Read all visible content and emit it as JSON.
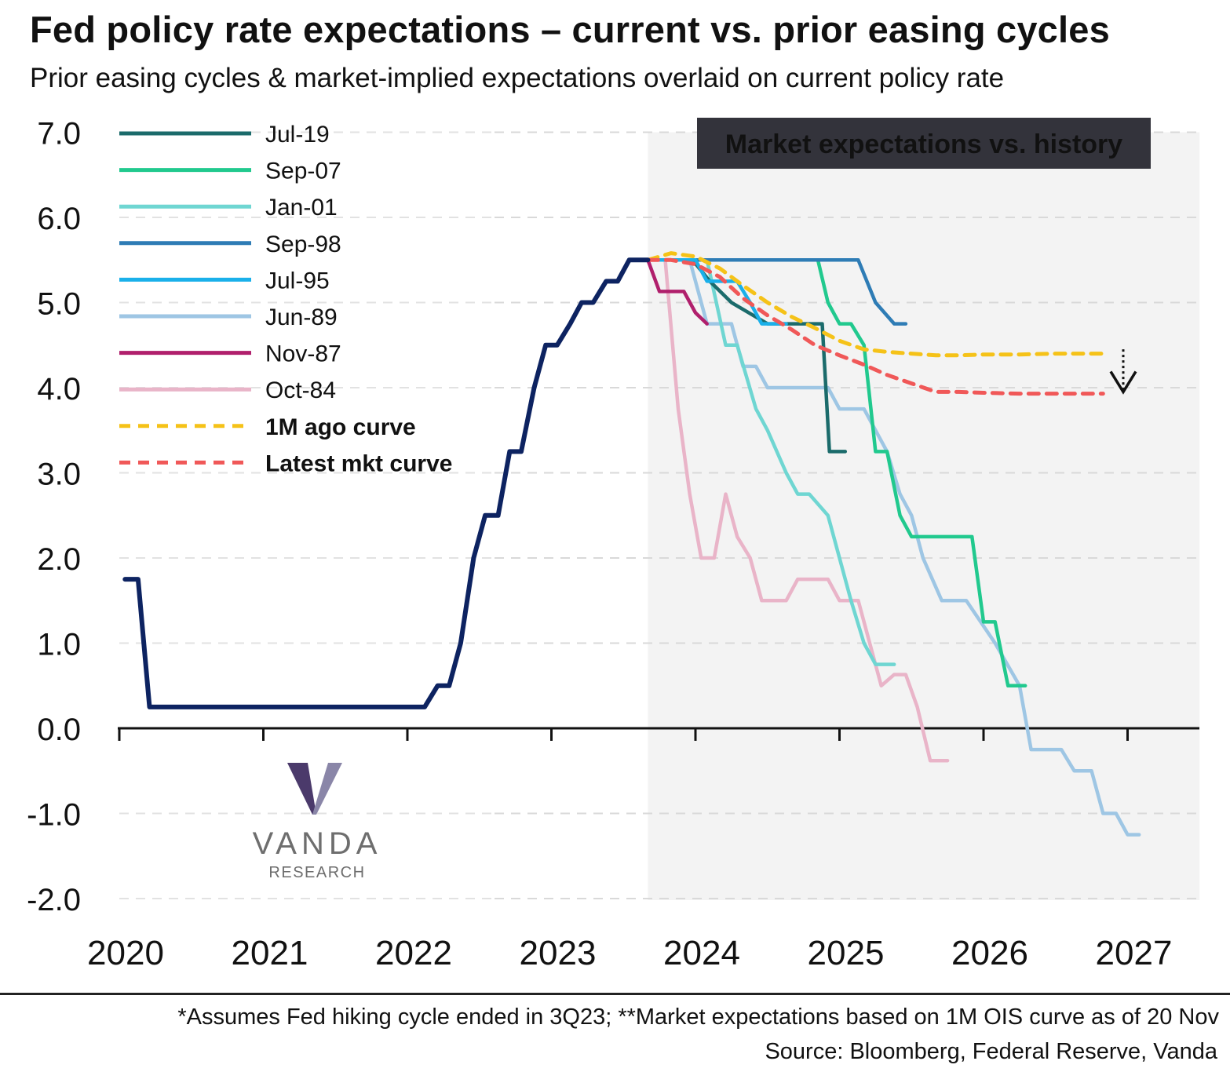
{
  "title": "Fed policy rate expectations – current vs. prior easing cycles",
  "subtitle": "Prior easing cycles & market-implied expectations overlaid on current policy rate",
  "footnote": "*Assumes Fed hiking cycle ended in 3Q23; **Market expectations based on 1M OIS curve as of 20 Nov",
  "source": "Source: Bloomberg, Federal Reserve, Vanda",
  "logo": {
    "name": "VANDA",
    "sub": "RESEARCH"
  },
  "chart_data": {
    "type": "line",
    "xlim": [
      2020.0,
      2027.5
    ],
    "ylim": [
      -2.0,
      7.0
    ],
    "xticks": [
      2020,
      2021,
      2022,
      2023,
      2024,
      2025,
      2026,
      2027
    ],
    "xtick_labels": [
      "2020",
      "2021",
      "2022",
      "2023",
      "2024",
      "2025",
      "2026",
      "2027"
    ],
    "yticks": [
      -2,
      -1,
      0,
      1,
      2,
      3,
      4,
      5,
      6,
      7
    ],
    "ytick_labels": [
      "-2.0",
      "-1.0",
      "0.0",
      "1.0",
      "2.0",
      "3.0",
      "4.0",
      "5.0",
      "6.0",
      "7.0"
    ],
    "grid": "horizontal dashed",
    "legend_position": "top-left",
    "shaded_region": {
      "x": [
        2023.67,
        2027.5
      ],
      "color": "#f3f3f3"
    },
    "annotation_box": {
      "text": "Market expectations vs. history",
      "bg": "#33333b",
      "color": "#ffffff"
    },
    "arrow_hint": {
      "x": 2026.97,
      "y_from": 4.45,
      "y_to": 3.95
    },
    "current_rate": {
      "color": "#0d2361",
      "points": [
        [
          2020.04,
          1.75
        ],
        [
          2020.13,
          1.75
        ],
        [
          2020.21,
          0.25
        ],
        [
          2022.12,
          0.25
        ],
        [
          2022.21,
          0.5
        ],
        [
          2022.29,
          0.5
        ],
        [
          2022.37,
          1.0
        ],
        [
          2022.46,
          2.0
        ],
        [
          2022.54,
          2.5
        ],
        [
          2022.63,
          2.5
        ],
        [
          2022.71,
          3.25
        ],
        [
          2022.79,
          3.25
        ],
        [
          2022.88,
          4.0
        ],
        [
          2022.96,
          4.5
        ],
        [
          2023.04,
          4.5
        ],
        [
          2023.13,
          4.75
        ],
        [
          2023.21,
          5.0
        ],
        [
          2023.29,
          5.0
        ],
        [
          2023.38,
          5.25
        ],
        [
          2023.46,
          5.25
        ],
        [
          2023.54,
          5.5
        ],
        [
          2023.67,
          5.5
        ]
      ]
    },
    "series": [
      {
        "name": "Jul-19",
        "color": "#1b6b6b",
        "dash": false,
        "bold": false,
        "points": [
          [
            2023.67,
            5.5
          ],
          [
            2023.98,
            5.5
          ],
          [
            2024.1,
            5.25
          ],
          [
            2024.25,
            5.0
          ],
          [
            2024.5,
            4.75
          ],
          [
            2024.88,
            4.75
          ],
          [
            2024.93,
            3.25
          ],
          [
            2025.04,
            3.25
          ]
        ]
      },
      {
        "name": "Sep-07",
        "color": "#21c98e",
        "dash": false,
        "bold": false,
        "points": [
          [
            2023.67,
            5.5
          ],
          [
            2024.85,
            5.5
          ],
          [
            2024.92,
            5.0
          ],
          [
            2025.0,
            4.75
          ],
          [
            2025.08,
            4.75
          ],
          [
            2025.17,
            4.5
          ],
          [
            2025.25,
            3.25
          ],
          [
            2025.33,
            3.25
          ],
          [
            2025.42,
            2.5
          ],
          [
            2025.5,
            2.25
          ],
          [
            2025.92,
            2.25
          ],
          [
            2026.0,
            1.25
          ],
          [
            2026.08,
            1.25
          ],
          [
            2026.17,
            0.5
          ],
          [
            2026.29,
            0.5
          ]
        ]
      },
      {
        "name": "Jan-01",
        "color": "#6fd6d2",
        "dash": false,
        "bold": false,
        "points": [
          [
            2023.67,
            5.5
          ],
          [
            2024.08,
            5.5
          ],
          [
            2024.21,
            4.5
          ],
          [
            2024.29,
            4.5
          ],
          [
            2024.42,
            3.75
          ],
          [
            2024.5,
            3.5
          ],
          [
            2024.63,
            3.0
          ],
          [
            2024.71,
            2.75
          ],
          [
            2024.79,
            2.75
          ],
          [
            2024.92,
            2.5
          ],
          [
            2025.0,
            2.0
          ],
          [
            2025.08,
            1.5
          ],
          [
            2025.17,
            1.0
          ],
          [
            2025.25,
            0.75
          ],
          [
            2025.38,
            0.75
          ]
        ]
      },
      {
        "name": "Sep-98",
        "color": "#2e7cb5",
        "dash": false,
        "bold": false,
        "points": [
          [
            2023.67,
            5.5
          ],
          [
            2025.13,
            5.5
          ],
          [
            2025.25,
            5.0
          ],
          [
            2025.38,
            4.75
          ],
          [
            2025.46,
            4.75
          ]
        ]
      },
      {
        "name": "Jul-95",
        "color": "#1ab0ea",
        "dash": false,
        "bold": false,
        "points": [
          [
            2023.67,
            5.5
          ],
          [
            2024.0,
            5.5
          ],
          [
            2024.08,
            5.25
          ],
          [
            2024.29,
            5.25
          ],
          [
            2024.38,
            5.0
          ],
          [
            2024.46,
            4.75
          ],
          [
            2024.63,
            4.75
          ]
        ]
      },
      {
        "name": "Jun-89",
        "color": "#9ec6e4",
        "dash": false,
        "bold": false,
        "points": [
          [
            2023.67,
            5.5
          ],
          [
            2023.96,
            5.5
          ],
          [
            2024.08,
            4.75
          ],
          [
            2024.25,
            4.75
          ],
          [
            2024.33,
            4.25
          ],
          [
            2024.42,
            4.25
          ],
          [
            2024.5,
            4.0
          ],
          [
            2024.92,
            4.0
          ],
          [
            2025.0,
            3.75
          ],
          [
            2025.17,
            3.75
          ],
          [
            2025.25,
            3.5
          ],
          [
            2025.33,
            3.25
          ],
          [
            2025.42,
            2.75
          ],
          [
            2025.5,
            2.5
          ],
          [
            2025.58,
            2.0
          ],
          [
            2025.71,
            1.5
          ],
          [
            2025.88,
            1.5
          ],
          [
            2026.08,
            1.0
          ],
          [
            2026.25,
            0.5
          ],
          [
            2026.33,
            -0.25
          ],
          [
            2026.54,
            -0.25
          ],
          [
            2026.63,
            -0.5
          ],
          [
            2026.75,
            -0.5
          ],
          [
            2026.83,
            -1.0
          ],
          [
            2026.92,
            -1.0
          ],
          [
            2027.0,
            -1.25
          ],
          [
            2027.08,
            -1.25
          ]
        ]
      },
      {
        "name": "Nov-87",
        "color": "#b01f6c",
        "dash": false,
        "bold": false,
        "points": [
          [
            2023.67,
            5.5
          ],
          [
            2023.75,
            5.13
          ],
          [
            2023.92,
            5.13
          ],
          [
            2024.0,
            4.88
          ],
          [
            2024.08,
            4.75
          ]
        ]
      },
      {
        "name": "Oct-84",
        "color": "#e9b4c8",
        "dash": false,
        "bold": false,
        "points": [
          [
            2023.67,
            5.5
          ],
          [
            2023.79,
            5.5
          ],
          [
            2023.88,
            3.75
          ],
          [
            2023.96,
            2.75
          ],
          [
            2024.04,
            2.0
          ],
          [
            2024.13,
            2.0
          ],
          [
            2024.21,
            2.75
          ],
          [
            2024.29,
            2.25
          ],
          [
            2024.38,
            2.0
          ],
          [
            2024.46,
            1.5
          ],
          [
            2024.63,
            1.5
          ],
          [
            2024.71,
            1.75
          ],
          [
            2024.92,
            1.75
          ],
          [
            2025.0,
            1.5
          ],
          [
            2025.13,
            1.5
          ],
          [
            2025.21,
            1.0
          ],
          [
            2025.29,
            0.5
          ],
          [
            2025.38,
            0.63
          ],
          [
            2025.46,
            0.63
          ],
          [
            2025.54,
            0.25
          ],
          [
            2025.63,
            -0.38
          ],
          [
            2025.75,
            -0.38
          ]
        ]
      },
      {
        "name": "1M ago curve",
        "color": "#f5c218",
        "dash": true,
        "bold": true,
        "points": [
          [
            2023.67,
            5.5
          ],
          [
            2023.83,
            5.58
          ],
          [
            2024.0,
            5.54
          ],
          [
            2024.17,
            5.4
          ],
          [
            2024.33,
            5.2
          ],
          [
            2024.5,
            5.0
          ],
          [
            2024.67,
            4.83
          ],
          [
            2024.83,
            4.7
          ],
          [
            2025.0,
            4.55
          ],
          [
            2025.17,
            4.45
          ],
          [
            2025.33,
            4.42
          ],
          [
            2025.5,
            4.4
          ],
          [
            2025.67,
            4.38
          ],
          [
            2025.83,
            4.38
          ],
          [
            2026.0,
            4.39
          ],
          [
            2026.25,
            4.39
          ],
          [
            2026.5,
            4.4
          ],
          [
            2026.83,
            4.4
          ]
        ]
      },
      {
        "name": "Latest mkt curve",
        "color": "#f05858",
        "dash": true,
        "bold": true,
        "points": [
          [
            2023.67,
            5.5
          ],
          [
            2023.83,
            5.5
          ],
          [
            2024.0,
            5.45
          ],
          [
            2024.17,
            5.3
          ],
          [
            2024.33,
            5.05
          ],
          [
            2024.5,
            4.85
          ],
          [
            2024.67,
            4.68
          ],
          [
            2024.83,
            4.5
          ],
          [
            2025.0,
            4.38
          ],
          [
            2025.17,
            4.27
          ],
          [
            2025.33,
            4.15
          ],
          [
            2025.5,
            4.05
          ],
          [
            2025.67,
            3.95
          ],
          [
            2025.83,
            3.95
          ],
          [
            2026.0,
            3.94
          ],
          [
            2026.25,
            3.93
          ],
          [
            2026.5,
            3.93
          ],
          [
            2026.83,
            3.93
          ]
        ]
      }
    ]
  }
}
